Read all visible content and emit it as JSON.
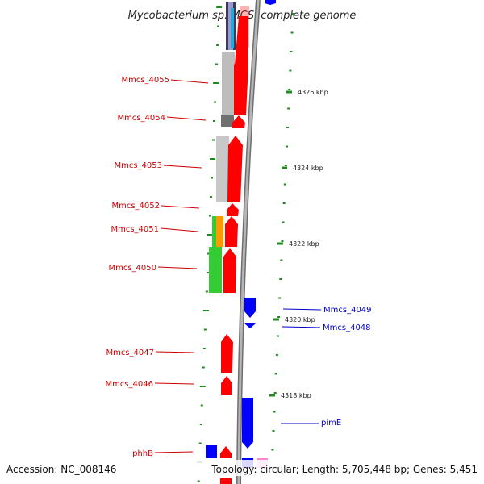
{
  "title": "Mycobacterium sp. MCS, complete genome",
  "footer": {
    "accession": "Accession: NC_008146",
    "topology": "Topology: circular; Length: 5,705,448 bp; Genes: 5,451"
  },
  "colors": {
    "forward_gene": "#ff0000",
    "reverse_gene": "#0000ff",
    "forward_label": "#cc0000",
    "reverse_label": "#0000cc",
    "backbone": "#8c8c8c",
    "gc_dots": "#1e8c1e"
  },
  "kbp_ticks": [
    "4326 kbp",
    "4324 kbp",
    "4322 kbp",
    "4320 kbp",
    "4318 kbp"
  ],
  "forward_labels": [
    "Mmcs_4055",
    "Mmcs_4054",
    "Mmcs_4053",
    "Mmcs_4052",
    "Mmcs_4051",
    "Mmcs_4050",
    "Mmcs_4047",
    "Mmcs_4046",
    "phhB"
  ],
  "reverse_labels": [
    "Mmcs_4049",
    "Mmcs_4048",
    "pimE"
  ],
  "forward_genes": [
    "Mmcs_4055",
    "Mmcs_4054",
    "Mmcs_4053",
    "Mmcs_4052",
    "Mmcs_4051",
    "Mmcs_4050",
    "Mmcs_4047",
    "Mmcs_4046",
    "phhB"
  ],
  "reverse_genes": [
    "Mmcs_4049",
    "Mmcs_4048",
    "pimE"
  ]
}
